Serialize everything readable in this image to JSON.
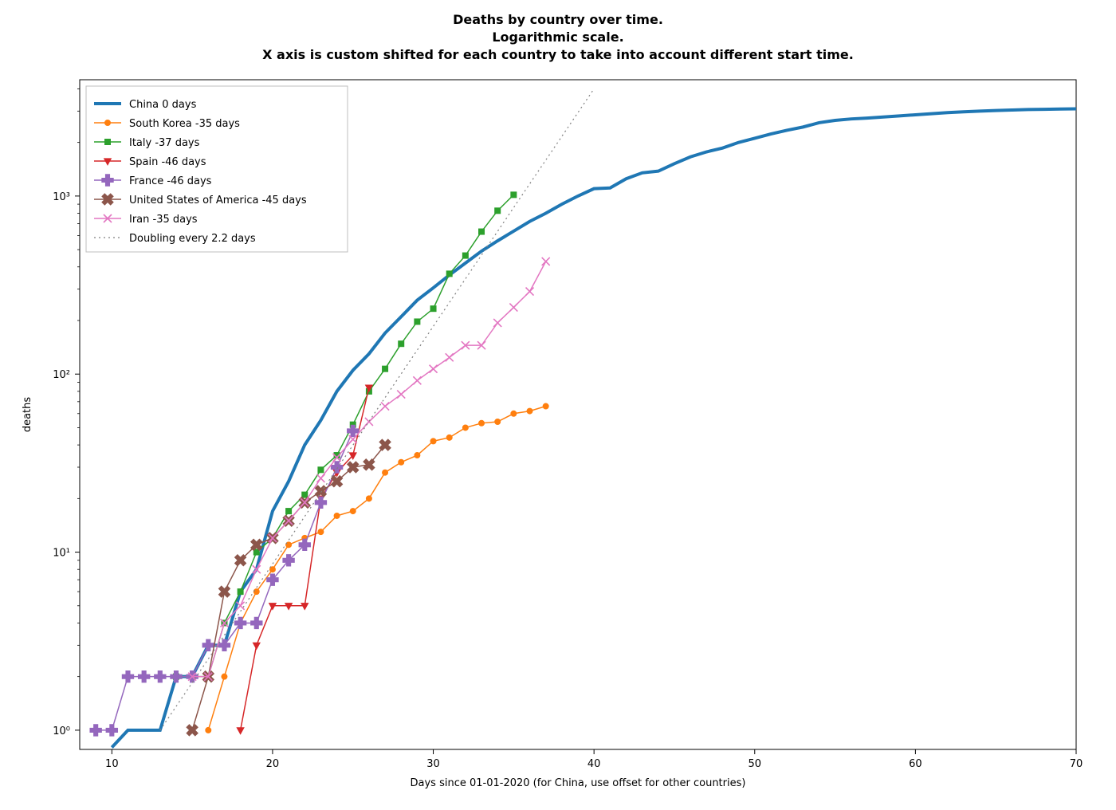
{
  "chart": {
    "type": "line",
    "title_lines": [
      "Deaths by country over time.",
      "Logarithmic scale.",
      "X axis is custom shifted for each country to take into account different start time."
    ],
    "title_fontsize": 16,
    "title_fontweight": "bold",
    "xlabel": "Days since 01-01-2020 (for China, use offset for other countries)",
    "ylabel": "deaths",
    "axis_label_fontsize": 13,
    "tick_fontsize": 13,
    "background_color": "#ffffff",
    "axes_edge_color": "#000000",
    "xlim": [
      8,
      70
    ],
    "ylim": [
      0.78,
      4500
    ],
    "yscale": "log",
    "xticks": [
      10,
      20,
      30,
      40,
      50,
      60,
      70
    ],
    "yticks": [
      1,
      10,
      100,
      1000
    ],
    "ytick_labels": [
      "10⁰",
      "10¹",
      "10²",
      "10³"
    ],
    "legend": {
      "loc": "upper-left",
      "fontsize": 13,
      "frame_color": "#bfbfbf",
      "frame_alpha": 1.0
    },
    "series": [
      {
        "label": "China 0 days",
        "color": "#1f77b4",
        "linewidth": 4,
        "marker": "none",
        "markersize": 0,
        "x": [
          10,
          11,
          12,
          13,
          14,
          15,
          16,
          17,
          18,
          19,
          20,
          21,
          22,
          23,
          24,
          25,
          26,
          27,
          28,
          29,
          30,
          31,
          32,
          33,
          34,
          35,
          36,
          37,
          38,
          39,
          40,
          41,
          42,
          43,
          44,
          45,
          46,
          47,
          48,
          49,
          50,
          51,
          52,
          53,
          54,
          55,
          56,
          57,
          58,
          59,
          60,
          61,
          62,
          63,
          64,
          65,
          66,
          67,
          68,
          69,
          70
        ],
        "y": [
          0.8,
          1,
          1,
          1,
          2,
          2,
          3,
          3,
          6,
          8,
          17,
          25,
          40,
          55,
          80,
          105,
          130,
          170,
          210,
          260,
          305,
          360,
          420,
          490,
          560,
          635,
          720,
          800,
          900,
          1000,
          1100,
          1110,
          1250,
          1350,
          1380,
          1520,
          1660,
          1770,
          1860,
          2000,
          2110,
          2230,
          2340,
          2440,
          2580,
          2660,
          2710,
          2740,
          2780,
          2820,
          2860,
          2900,
          2940,
          2970,
          3000,
          3020,
          3040,
          3060,
          3070,
          3080,
          3090
        ]
      },
      {
        "label": "South Korea -35 days",
        "color": "#ff7f0e",
        "linewidth": 1.5,
        "marker": "circle",
        "markersize": 7,
        "x": [
          16,
          17,
          18,
          19,
          20,
          21,
          22,
          23,
          24,
          25,
          26,
          27,
          28,
          29,
          30,
          31,
          32,
          33,
          34,
          35,
          36,
          37
        ],
        "y": [
          1,
          2,
          4,
          6,
          8,
          11,
          12,
          13,
          16,
          17,
          20,
          28,
          32,
          35,
          42,
          44,
          50,
          53,
          54,
          60,
          62,
          66
        ]
      },
      {
        "label": "Italy -37 days",
        "color": "#2ca02c",
        "linewidth": 1.5,
        "marker": "square",
        "markersize": 7,
        "x": [
          14,
          15,
          16,
          17,
          18,
          19,
          20,
          21,
          22,
          23,
          24,
          25,
          26,
          27,
          28,
          29,
          30,
          31,
          32,
          33,
          34,
          35
        ],
        "y": [
          2,
          2,
          2,
          4,
          6,
          10,
          12,
          17,
          21,
          29,
          35,
          52,
          80,
          107,
          148,
          197,
          233,
          366,
          463,
          631,
          827,
          1016
        ]
      },
      {
        "label": "Spain -46 days",
        "color": "#d62728",
        "linewidth": 1.5,
        "marker": "triangle-down",
        "markersize": 7,
        "x": [
          18,
          19,
          20,
          21,
          22,
          23,
          24,
          25,
          26
        ],
        "y": [
          1,
          3,
          5,
          5,
          5,
          20,
          28,
          35,
          84
        ]
      },
      {
        "label": "France -46 days",
        "color": "#9467bd",
        "linewidth": 1.5,
        "marker": "plus-filled",
        "markersize": 8,
        "x": [
          9,
          10,
          11,
          12,
          13,
          14,
          15,
          16,
          17,
          18,
          19,
          20,
          21,
          22,
          23,
          24,
          25
        ],
        "y": [
          1,
          1,
          2,
          2,
          2,
          2,
          2,
          3,
          3,
          4,
          4,
          7,
          9,
          11,
          19,
          30,
          48
        ]
      },
      {
        "label": "United States of America -45 days",
        "color": "#8c564b",
        "linewidth": 1.5,
        "marker": "x-filled",
        "markersize": 8,
        "x": [
          15,
          16,
          17,
          18,
          19,
          20,
          21,
          22,
          23,
          24,
          25,
          26,
          27
        ],
        "y": [
          1,
          2,
          6,
          9,
          11,
          12,
          15,
          19,
          22,
          25,
          30,
          31,
          40
        ]
      },
      {
        "label": "Iran -35 days",
        "color": "#e377c2",
        "linewidth": 1.5,
        "marker": "x-thin",
        "markersize": 8,
        "x": [
          15,
          16,
          17,
          18,
          19,
          20,
          21,
          22,
          23,
          24,
          25,
          26,
          27,
          28,
          29,
          30,
          31,
          32,
          33,
          34,
          35,
          36,
          37
        ],
        "y": [
          2,
          2,
          4,
          5,
          8,
          12,
          15,
          19,
          26,
          34,
          43,
          54,
          66,
          77,
          92,
          107,
          124,
          145,
          145,
          194,
          237,
          291,
          429
        ]
      },
      {
        "label": "Doubling every 2.2 days",
        "color": "#7f7f7f",
        "linewidth": 1.2,
        "linestyle": "dotted",
        "marker": "none",
        "markersize": 0,
        "x": [
          13,
          40
        ],
        "y": [
          1,
          4000
        ]
      }
    ]
  }
}
